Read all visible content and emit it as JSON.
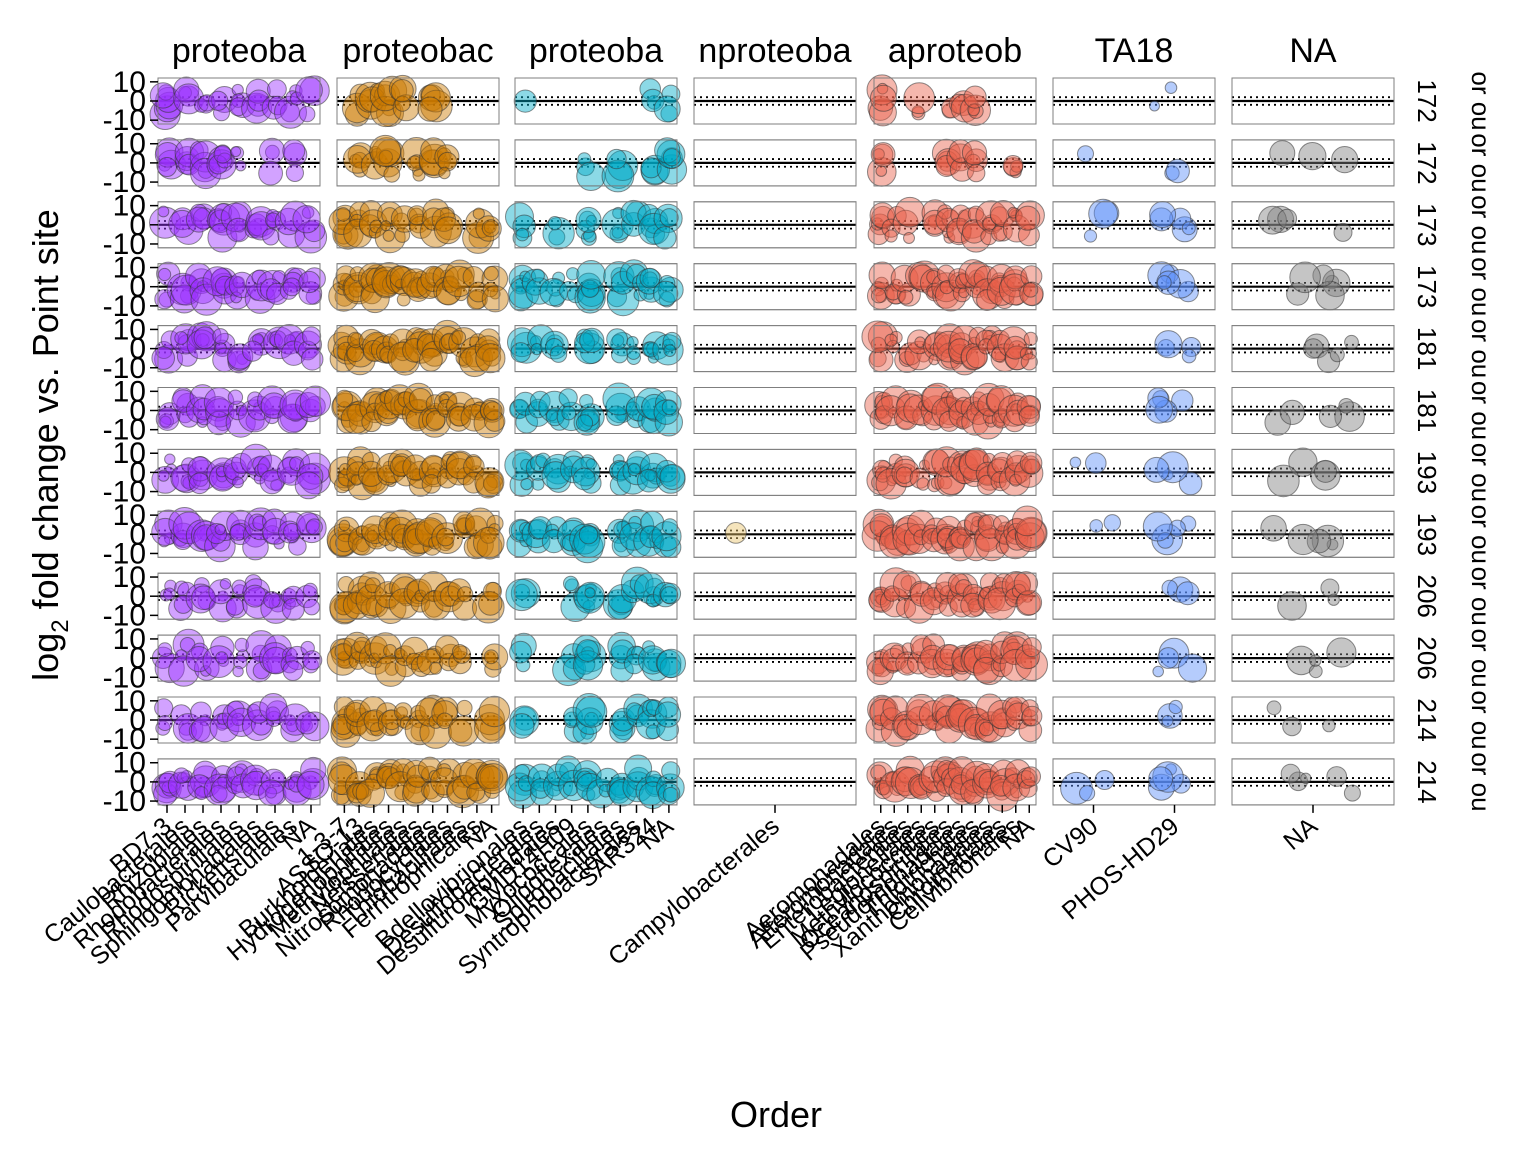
{
  "chart_data": {
    "type": "scatter",
    "title": "",
    "xlabel": "Order",
    "ylabel_base": "log",
    "ylabel_sub": "2",
    "ylabel_rest": " fold change vs. Point site",
    "ytick_labels": [
      "10",
      "0",
      "-10"
    ],
    "ylim": [
      -12,
      12
    ],
    "reference_lines": {
      "solid": 0,
      "dotted": [
        -2,
        2
      ]
    },
    "point_alpha": 0.45,
    "column_facets": [
      {
        "label": "proteoba",
        "color": "#9b30ff"
      },
      {
        "label": "proteobac",
        "color": "#cc7a00"
      },
      {
        "label": "proteoba",
        "color": "#00aac8"
      },
      {
        "label": "nproteoba",
        "color": "#e8c46a"
      },
      {
        "label": "aproteob",
        "color": "#e8604a"
      },
      {
        "label": "TA18",
        "color": "#5b8ff9"
      },
      {
        "label": "NA",
        "color": "#7f7f7f"
      }
    ],
    "row_facets": [
      "172",
      "172",
      "173",
      "173",
      "181",
      "181",
      "193",
      "193",
      "206",
      "206",
      "214",
      "214"
    ],
    "row_facet_suffix": [
      "or",
      "ou"
    ],
    "x_categories": [
      [
        "BD7-3",
        "Caulobacterales",
        "Rhizobiales",
        "Rhodobacterales",
        "Rhodospirillales",
        "Sphingomonadales",
        "Rickettsiales",
        "Parvibaculales",
        "NA"
      ],
      [
        "1-3-7",
        "ASSO-13",
        "Burkholderiales",
        "Hydrogenophilales",
        "Methylophilales",
        "Neisseriales",
        "Nitrosomonadales",
        "Rhodocyclales",
        "Thiobacillales",
        "Ferritrophicales",
        "NA"
      ],
      [
        "Bdellovibrionales",
        "Desulfobacterales",
        "Desulfuromonadales",
        "GMD14H09",
        "Myxococcales",
        "Oligoflexales",
        "Spirobacillales",
        "Syntrophobacterales",
        "SAR324",
        "NA"
      ],
      [
        "Campylobacterales"
      ],
      [
        "Aeromonadales",
        "Alteromonadales",
        "Enterobacterales",
        "Legionellales",
        "Methylococcales",
        "Oceanospirillales",
        "Pseudomonadales",
        "Thiotrichales",
        "Xanthomonadales",
        "Chromatiales",
        "Cellvibrionales",
        "NA"
      ],
      [
        "CV90",
        "PHOS-HD29"
      ],
      [
        "NA"
      ]
    ],
    "point_summary": [
      [
        [
          6,
          4,
          3,
          3,
          4,
          4,
          3,
          5,
          3
        ],
        [
          0,
          3,
          5,
          6,
          4,
          0,
          5,
          0,
          0,
          0,
          0
        ],
        [
          1,
          0,
          0,
          0,
          0,
          0,
          0,
          0,
          3,
          3
        ],
        [
          0
        ],
        [
          5,
          0,
          0,
          3,
          0,
          2,
          3,
          4,
          0,
          0,
          0,
          0
        ],
        [
          0,
          2
        ],
        [
          0
        ]
      ],
      [
        [
          5,
          4,
          5,
          6,
          3,
          0,
          3,
          3,
          0
        ],
        [
          0,
          5,
          3,
          6,
          0,
          5,
          4,
          4,
          0,
          0,
          0
        ],
        [
          0,
          0,
          0,
          0,
          3,
          0,
          4,
          0,
          3,
          5
        ],
        [
          0
        ],
        [
          5,
          0,
          0,
          0,
          0,
          4,
          3,
          4,
          0,
          0,
          4,
          0
        ],
        [
          1,
          2
        ],
        [
          3
        ]
      ],
      [
        [
          2,
          3,
          4,
          5,
          5,
          5,
          4,
          3,
          4
        ],
        [
          6,
          4,
          5,
          5,
          3,
          4,
          3,
          4,
          0,
          4,
          3
        ],
        [
          4,
          0,
          3,
          0,
          6,
          0,
          4,
          3,
          5,
          3
        ],
        [
          0
        ],
        [
          5,
          3,
          3,
          0,
          4,
          5,
          4,
          4,
          4,
          4,
          4,
          3
        ],
        [
          3,
          5
        ],
        [
          4
        ]
      ],
      [
        [
          4,
          5,
          5,
          6,
          5,
          4,
          4,
          5,
          4
        ],
        [
          6,
          5,
          6,
          5,
          5,
          6,
          5,
          5,
          4,
          4,
          5
        ],
        [
          5,
          3,
          4,
          3,
          6,
          0,
          5,
          4,
          5,
          4
        ],
        [
          0
        ],
        [
          6,
          4,
          3,
          3,
          4,
          5,
          6,
          6,
          5,
          5,
          5,
          4
        ],
        [
          0,
          6
        ],
        [
          6
        ]
      ],
      [
        [
          4,
          5,
          5,
          5,
          4,
          5,
          4,
          5,
          4
        ],
        [
          6,
          5,
          5,
          5,
          5,
          5,
          5,
          4,
          4,
          4,
          5
        ],
        [
          3,
          3,
          4,
          0,
          6,
          0,
          4,
          3,
          5,
          4
        ],
        [
          0
        ],
        [
          5,
          3,
          3,
          4,
          4,
          5,
          5,
          5,
          5,
          5,
          5,
          4
        ],
        [
          0,
          4
        ],
        [
          5
        ]
      ],
      [
        [
          4,
          5,
          5,
          5,
          4,
          5,
          4,
          5,
          4
        ],
        [
          6,
          5,
          5,
          5,
          5,
          5,
          5,
          4,
          4,
          4,
          5
        ],
        [
          4,
          3,
          4,
          3,
          6,
          0,
          5,
          4,
          5,
          4
        ],
        [
          0
        ],
        [
          6,
          3,
          4,
          3,
          4,
          6,
          6,
          5,
          5,
          5,
          5,
          4
        ],
        [
          0,
          5
        ],
        [
          5
        ]
      ],
      [
        [
          4,
          5,
          5,
          5,
          4,
          5,
          4,
          5,
          4
        ],
        [
          6,
          5,
          5,
          5,
          5,
          5,
          5,
          4,
          4,
          4,
          5
        ],
        [
          5,
          4,
          4,
          3,
          6,
          0,
          5,
          4,
          5,
          4
        ],
        [
          0
        ],
        [
          5,
          4,
          4,
          3,
          4,
          5,
          5,
          5,
          5,
          5,
          5,
          4
        ],
        [
          2,
          4
        ],
        [
          4
        ]
      ],
      [
        [
          4,
          5,
          5,
          5,
          4,
          5,
          4,
          5,
          4
        ],
        [
          6,
          5,
          5,
          5,
          5,
          5,
          5,
          4,
          4,
          4,
          5
        ],
        [
          5,
          4,
          4,
          4,
          6,
          0,
          5,
          4,
          5,
          4
        ],
        [
          1
        ],
        [
          6,
          4,
          4,
          3,
          4,
          6,
          6,
          5,
          5,
          5,
          5,
          4
        ],
        [
          2,
          5
        ],
        [
          5
        ]
      ],
      [
        [
          3,
          4,
          4,
          4,
          4,
          4,
          4,
          4,
          3
        ],
        [
          6,
          5,
          5,
          4,
          4,
          4,
          4,
          3,
          3,
          0,
          4
        ],
        [
          3,
          0,
          0,
          3,
          6,
          0,
          4,
          3,
          5,
          3
        ],
        [
          0
        ],
        [
          5,
          3,
          3,
          3,
          4,
          5,
          5,
          5,
          5,
          4,
          5,
          4
        ],
        [
          0,
          3
        ],
        [
          3
        ]
      ],
      [
        [
          3,
          4,
          4,
          4,
          4,
          4,
          4,
          4,
          3
        ],
        [
          6,
          5,
          5,
          4,
          4,
          4,
          4,
          3,
          3,
          0,
          4
        ],
        [
          3,
          0,
          0,
          3,
          6,
          0,
          4,
          3,
          5,
          3
        ],
        [
          0
        ],
        [
          5,
          4,
          3,
          3,
          4,
          5,
          5,
          5,
          5,
          4,
          5,
          4
        ],
        [
          0,
          4
        ],
        [
          4
        ]
      ],
      [
        [
          3,
          4,
          4,
          4,
          4,
          4,
          4,
          4,
          3
        ],
        [
          6,
          5,
          5,
          4,
          4,
          4,
          4,
          3,
          3,
          0,
          4
        ],
        [
          3,
          0,
          0,
          3,
          6,
          0,
          4,
          3,
          5,
          3
        ],
        [
          0
        ],
        [
          5,
          3,
          3,
          3,
          4,
          5,
          5,
          5,
          5,
          4,
          5,
          4
        ],
        [
          0,
          3
        ],
        [
          3
        ]
      ],
      [
        [
          5,
          5,
          5,
          5,
          5,
          5,
          5,
          5,
          4
        ],
        [
          6,
          5,
          5,
          5,
          5,
          5,
          5,
          4,
          4,
          4,
          5
        ],
        [
          5,
          4,
          4,
          4,
          6,
          3,
          5,
          4,
          5,
          4
        ],
        [
          0
        ],
        [
          6,
          4,
          4,
          4,
          4,
          6,
          6,
          5,
          5,
          5,
          5,
          4
        ],
        [
          3,
          5
        ],
        [
          5
        ]
      ]
    ]
  }
}
